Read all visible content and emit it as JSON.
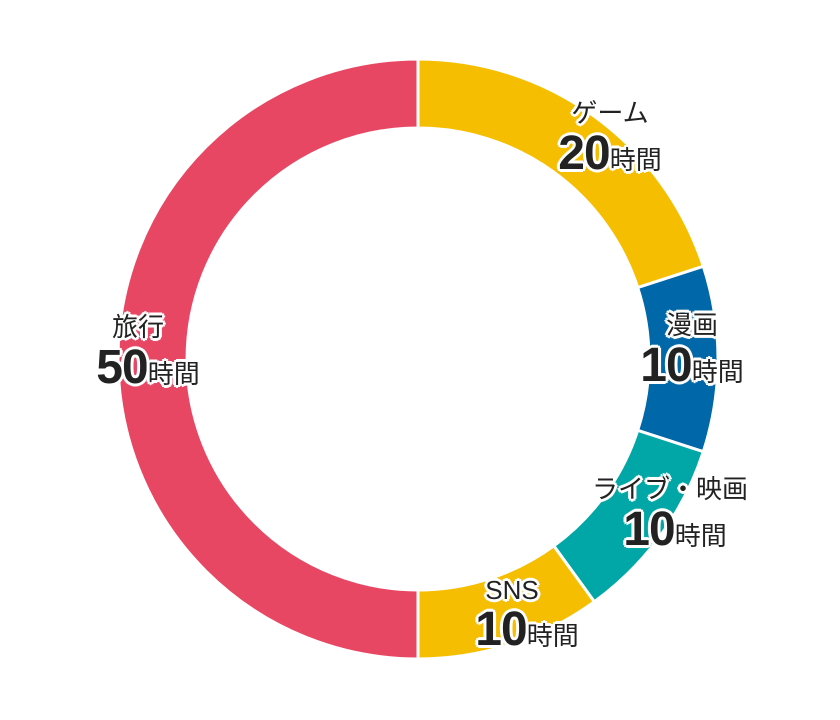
{
  "chart_data": {
    "type": "pie",
    "variant": "donut",
    "title": "",
    "unit": "時間",
    "categories": [
      "ゲーム",
      "漫画",
      "ライブ・映画",
      "SNS",
      "旅行"
    ],
    "values": [
      20,
      10,
      10,
      10,
      50
    ],
    "colors": [
      "#F6BE00",
      "#0068A8",
      "#00A7A6",
      "#F6BE00",
      "#E84764"
    ],
    "labels": [
      {
        "name": "ゲーム",
        "num": "20",
        "unit": "時間"
      },
      {
        "name": "漫画",
        "num": "10",
        "unit": "時間"
      },
      {
        "name": "ライブ・映画",
        "num": "10",
        "unit": "時間"
      },
      {
        "name": "SNS",
        "num": "10",
        "unit": "時間"
      },
      {
        "name": "旅行",
        "num": "50",
        "unit": "時間"
      }
    ],
    "start_angle_deg": 0,
    "direction": "clockwise",
    "legend": "none"
  }
}
